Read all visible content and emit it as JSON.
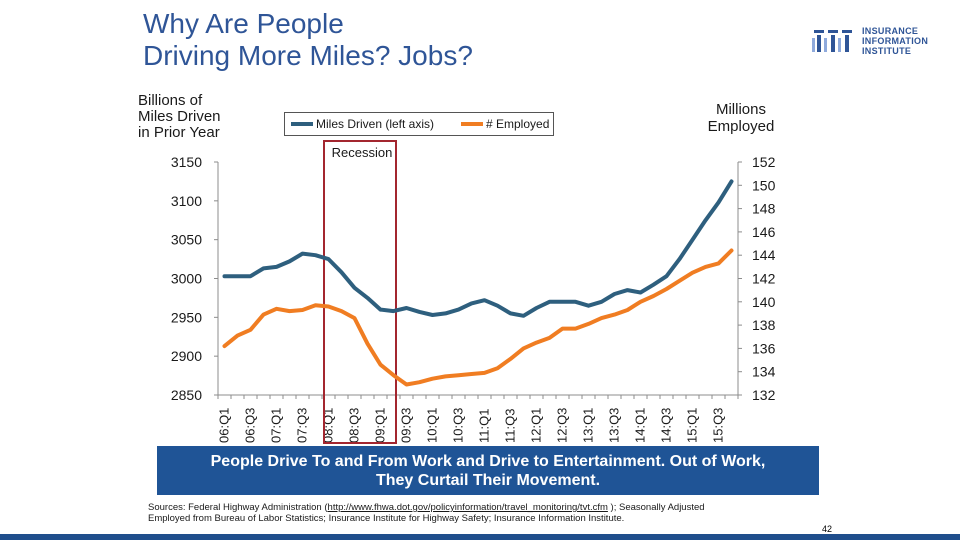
{
  "title": {
    "line1": "Why Are People",
    "line2": "Driving More Miles? Jobs?"
  },
  "logo": {
    "line1": "INSURANCE",
    "line2": "INFORMATION",
    "line3": "INSTITUTE"
  },
  "left_axis_title": {
    "line1": "Billions of",
    "line2": "Miles Driven",
    "line3": "in Prior Year"
  },
  "right_axis_title": {
    "line1": "Millions",
    "line2": "Employed"
  },
  "colors": {
    "miles": "#2e5f7e",
    "employed": "#f07d22",
    "recession": "#a3262f",
    "caption_bg": "#1f5496",
    "bar": "#1f4e8c"
  },
  "chart_data": {
    "type": "line",
    "categories": [
      "06:Q1",
      "06:Q2",
      "06:Q3",
      "06:Q4",
      "07:Q1",
      "07:Q2",
      "07:Q3",
      "07:Q4",
      "08:Q1",
      "08:Q2",
      "08:Q3",
      "08:Q4",
      "09:Q1",
      "09:Q2",
      "09:Q3",
      "09:Q4",
      "10:Q1",
      "10:Q2",
      "10:Q3",
      "10:Q4",
      "11:Q1",
      "11:Q2",
      "11:Q3",
      "11:Q4",
      "12:Q1",
      "12:Q2",
      "12:Q3",
      "12:Q4",
      "13:Q1",
      "13:Q2",
      "13:Q3",
      "13:Q4",
      "14:Q1",
      "14:Q2",
      "14:Q3",
      "14:Q4",
      "15:Q1",
      "15:Q2",
      "15:Q3",
      "15:Q4"
    ],
    "x_tick_labels": [
      "06:Q1",
      "06:Q3",
      "07:Q1",
      "07:Q3",
      "08:Q1",
      "08:Q3",
      "09:Q1",
      "09:Q3",
      "10:Q1",
      "10:Q3",
      "11:Q1",
      "11:Q3",
      "12:Q1",
      "12:Q3",
      "13:Q1",
      "13:Q3",
      "14:Q1",
      "14:Q3",
      "15:Q1",
      "15:Q3"
    ],
    "series": [
      {
        "name": "Miles Driven (left axis)",
        "axis": "left",
        "values": [
          3003,
          3003,
          3003,
          3013,
          3015,
          3022,
          3032,
          3030,
          3025,
          3008,
          2988,
          2975,
          2960,
          2958,
          2962,
          2957,
          2953,
          2955,
          2960,
          2968,
          2972,
          2965,
          2955,
          2952,
          2962,
          2970,
          2970,
          2970,
          2965,
          2970,
          2980,
          2985,
          2982,
          2992,
          3003,
          3025,
          3050,
          3075,
          3098,
          3125
        ]
      },
      {
        "name": "# Employed",
        "axis": "right",
        "values": [
          136.2,
          137.1,
          137.6,
          138.9,
          139.4,
          139.2,
          139.3,
          139.7,
          139.6,
          139.2,
          138.6,
          136.4,
          134.6,
          133.7,
          132.9,
          133.1,
          133.4,
          133.6,
          133.7,
          133.8,
          133.9,
          134.3,
          135.1,
          136.0,
          136.5,
          136.9,
          137.7,
          137.7,
          138.1,
          138.6,
          138.9,
          139.3,
          140.0,
          140.5,
          141.1,
          141.8,
          142.5,
          143.0,
          143.3,
          144.4
        ]
      }
    ],
    "left_axis": {
      "min": 2850,
      "max": 3150,
      "ticks": [
        "3150",
        "3100",
        "3050",
        "3000",
        "2950",
        "2900",
        "2850"
      ]
    },
    "right_axis": {
      "min": 132,
      "max": 152,
      "ticks": [
        "152",
        "150",
        "148",
        "146",
        "144",
        "142",
        "140",
        "138",
        "136",
        "134",
        "132"
      ]
    },
    "annotation": {
      "label": "Recession",
      "start": "08:Q1",
      "end": "09:Q2"
    }
  },
  "caption": {
    "line1": "People Drive To and From Work and Drive to Entertainment. Out of Work,",
    "line2": "They Curtail Their Movement."
  },
  "sources": {
    "prefix": "Sources: Federal Highway Administration (",
    "link": "http://www.fhwa.dot.gov/policyinformation/travel_monitoring/tvt.cfm",
    "suffix": " ); Seasonally Adjusted",
    "line2": "Employed from Bureau of Labor Statistics; Insurance Institute for Highway Safety; Insurance Information Institute."
  },
  "page_number": "42"
}
